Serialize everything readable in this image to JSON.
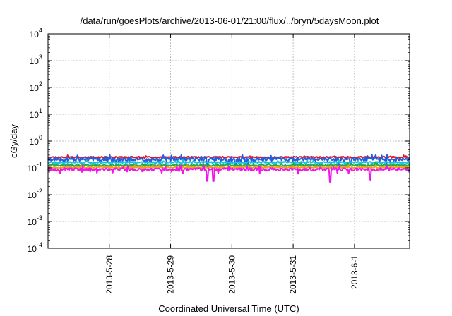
{
  "chart_data": {
    "type": "line",
    "title": "/data/run/goesPlots/archive/2013-06-01/21:00/flux/../bryn/5daysMoon.plot",
    "xlabel": "Coordinated Universal Time (UTC)",
    "ylabel": "cGy/day",
    "yscale": "log",
    "ylim": [
      0.0001,
      10000
    ],
    "xlim_days": [
      0,
      5.9
    ],
    "grid": true,
    "y_ticks": [
      {
        "exp": "-4",
        "value": 0.0001
      },
      {
        "exp": "-3",
        "value": 0.001
      },
      {
        "exp": "-2",
        "value": 0.01
      },
      {
        "exp": "-1",
        "value": 0.1
      },
      {
        "exp": "0",
        "value": 1
      },
      {
        "exp": "1",
        "value": 10
      },
      {
        "exp": "2",
        "value": 100
      },
      {
        "exp": "3",
        "value": 1000
      },
      {
        "exp": "4",
        "value": 10000
      }
    ],
    "x_ticks": [
      {
        "label": "2013-5-28",
        "day": 1.0
      },
      {
        "label": "2013-5-29",
        "day": 2.0
      },
      {
        "label": "2013-5-30",
        "day": 3.0
      },
      {
        "label": "2013-5-31",
        "day": 4.0
      },
      {
        "label": "2013-6-1",
        "day": 5.0
      }
    ],
    "series": [
      {
        "name": "red",
        "color": "#e8141c",
        "base": 0.25,
        "noise": 0.06,
        "seed": 11,
        "dips": []
      },
      {
        "name": "blue",
        "color": "#1f5fe0",
        "base": 0.21,
        "noise": 0.15,
        "seed": 23,
        "dips": [
          {
            "day": 2.6,
            "factor": 0.5
          },
          {
            "day": 3.05,
            "factor": 0.6
          },
          {
            "day": 4.75,
            "factor": 0.6
          }
        ]
      },
      {
        "name": "cyan",
        "color": "#19c4d6",
        "base": 0.16,
        "noise": 0.07,
        "seed": 37,
        "dips": []
      },
      {
        "name": "green",
        "color": "#2aa84a",
        "base": 0.125,
        "noise": 0.07,
        "seed": 41,
        "dips": []
      },
      {
        "name": "orange",
        "color": "#e8a020",
        "base": 0.105,
        "noise": 0.07,
        "seed": 53,
        "dips": []
      },
      {
        "name": "magenta",
        "color": "#f018e8",
        "base": 0.088,
        "noise": 0.12,
        "seed": 67,
        "dips": [
          {
            "day": 2.6,
            "factor": 0.4
          },
          {
            "day": 2.7,
            "factor": 0.4
          },
          {
            "day": 4.6,
            "factor": 0.3
          },
          {
            "day": 5.25,
            "factor": 0.45
          },
          {
            "day": 2.2,
            "factor": 0.65
          }
        ]
      }
    ]
  }
}
